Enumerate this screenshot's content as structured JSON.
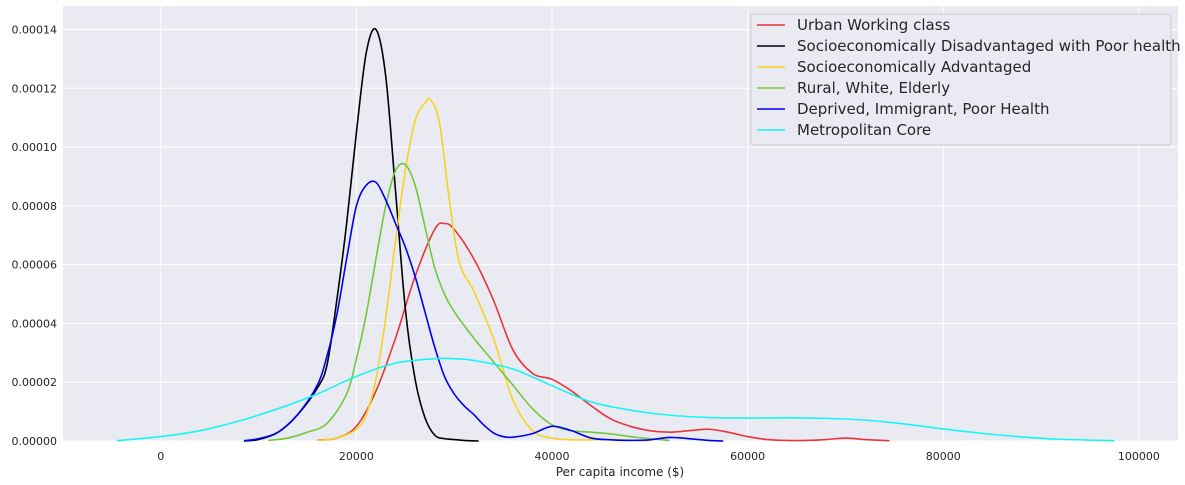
{
  "chart_data": {
    "type": "line",
    "title": "",
    "xlabel": "Per capita income ($)",
    "ylabel": "",
    "xlim": [
      -10000,
      104000
    ],
    "ylim": [
      0,
      0.000148
    ],
    "xticks": [
      0,
      20000,
      40000,
      60000,
      80000,
      100000
    ],
    "xtick_labels": [
      "0",
      "20000",
      "40000",
      "60000",
      "80000",
      "100000"
    ],
    "yticks": [
      0,
      2e-05,
      4e-05,
      6e-05,
      8e-05,
      0.0001,
      0.00012,
      0.00014
    ],
    "ytick_labels": [
      "0.00000",
      "0.00002",
      "0.00004",
      "0.00006",
      "0.00008",
      "0.00010",
      "0.00012",
      "0.00014"
    ],
    "grid": true,
    "legend_position": "top-right",
    "series": [
      {
        "name": "Urban Working class",
        "color": "#e8353a",
        "x": [
          16000,
          18000,
          20000,
          22000,
          24000,
          26000,
          28000,
          29000,
          30000,
          32000,
          34000,
          36000,
          38000,
          40000,
          42000,
          44000,
          46000,
          48000,
          50000,
          52000,
          54000,
          56000,
          58000,
          60000,
          62000,
          64000,
          66000,
          68000,
          70000,
          72000,
          74500
        ],
        "y": [
          3e-07,
          1e-06,
          5e-06,
          1.7e-05,
          3.5e-05,
          5.6e-05,
          7.2e-05,
          7.4e-05,
          7.2e-05,
          6.2e-05,
          4.8e-05,
          3.1e-05,
          2.3e-05,
          2.1e-05,
          1.7e-05,
          1.2e-05,
          7.5e-06,
          5e-06,
          3.5e-06,
          3e-06,
          3.5e-06,
          4e-06,
          3e-06,
          1.5e-06,
          5e-07,
          2e-07,
          2e-07,
          5e-07,
          1e-06,
          5e-07,
          1e-07
        ]
      },
      {
        "name": "Socioeconomically Disadvantaged with Poor health",
        "color": "#000000",
        "x": [
          8500,
          10000,
          12000,
          14000,
          16000,
          17000,
          18000,
          19000,
          20000,
          21000,
          22000,
          23000,
          24000,
          25000,
          26000,
          27000,
          28000,
          29000,
          30000,
          31000,
          32500
        ],
        "y": [
          0,
          5e-07,
          3e-06,
          9e-06,
          1.8e-05,
          2.6e-05,
          4.8e-05,
          7.4e-05,
          0.000105,
          0.000132,
          0.00014,
          0.000124,
          8.5e-05,
          4.5e-05,
          2.1e-05,
          8e-06,
          2e-06,
          8e-07,
          5e-07,
          2e-07,
          0
        ]
      },
      {
        "name": "Socioeconomically Advantaged",
        "color": "#f7d31e",
        "x": [
          16000,
          18000,
          20000,
          21000,
          22000,
          23000,
          24000,
          25000,
          26000,
          27000,
          27600,
          28500,
          29500,
          30500,
          32000,
          34000,
          36000,
          38000,
          40000,
          42000,
          44000,
          46000,
          48000,
          50000
        ],
        "y": [
          2e-07,
          1e-06,
          4e-06,
          9e-06,
          2.1e-05,
          4.2e-05,
          6.8e-05,
          9.2e-05,
          0.000109,
          0.000115,
          0.000116,
          0.000108,
          8.2e-05,
          6.1e-05,
          5.1e-05,
          3.5e-05,
          1.4e-05,
          3.5e-06,
          1e-06,
          4e-07,
          4e-07,
          5e-07,
          3e-07,
          1e-07
        ]
      },
      {
        "name": "Rural, White, Elderly",
        "color": "#73c73d",
        "x": [
          11000,
          13000,
          15000,
          17000,
          19000,
          20000,
          21000,
          22000,
          23000,
          24000,
          25000,
          26000,
          27000,
          28000,
          29000,
          30000,
          32000,
          34000,
          36000,
          38000,
          40000,
          42000,
          44000,
          46000,
          48000,
          50000,
          52000
        ],
        "y": [
          2e-07,
          1e-06,
          3e-06,
          6e-06,
          1.6e-05,
          2.8e-05,
          4.3e-05,
          6.2e-05,
          8e-05,
          9.2e-05,
          9.4e-05,
          8.7e-05,
          7.3e-05,
          5.9e-05,
          5e-05,
          4.4e-05,
          3.5e-05,
          2.7e-05,
          1.9e-05,
          1.1e-05,
          5.5e-06,
          3.5e-06,
          3e-06,
          2.4e-06,
          1.5e-06,
          8e-07,
          2e-07
        ]
      },
      {
        "name": "Deprived, Immigrant, Poor Health",
        "color": "#0000f5",
        "x": [
          8500,
          10000,
          12000,
          14000,
          16000,
          17000,
          18000,
          19000,
          20000,
          21000,
          22000,
          23000,
          24000,
          25000,
          26000,
          27000,
          28000,
          29000,
          30000,
          31000,
          32000,
          33000,
          34000,
          35000,
          36000,
          38000,
          40000,
          42000,
          44000,
          46000,
          48000,
          50000,
          52000,
          54000,
          56000,
          57500
        ],
        "y": [
          1e-07,
          8e-07,
          3e-06,
          9e-06,
          1.9e-05,
          2.9e-05,
          4.3e-05,
          6.2e-05,
          8e-05,
          8.7e-05,
          8.8e-05,
          8.2e-05,
          7.4e-05,
          6.6e-05,
          5.6e-05,
          4.4e-05,
          3.2e-05,
          2.2e-05,
          1.6e-05,
          1.2e-05,
          9e-06,
          5.5e-06,
          2.8e-06,
          1.5e-06,
          1.3e-06,
          2.5e-06,
          5e-06,
          3.5e-06,
          1e-06,
          4e-07,
          2e-07,
          4e-07,
          1.2e-06,
          8e-07,
          2e-07,
          0
        ]
      },
      {
        "name": "Metropolitan Core",
        "color": "#16f5f5",
        "x": [
          -4500,
          0,
          4000,
          8000,
          12000,
          16000,
          20000,
          24000,
          28000,
          30000,
          32000,
          36000,
          40000,
          44000,
          48000,
          52000,
          56000,
          60000,
          64000,
          68000,
          72000,
          76000,
          80000,
          84000,
          88000,
          92000,
          97500
        ],
        "y": [
          1e-07,
          1.5e-06,
          3.5e-06,
          6.8e-06,
          1.1e-05,
          1.6e-05,
          2.2e-05,
          2.65e-05,
          2.8e-05,
          2.8e-05,
          2.74e-05,
          2.45e-05,
          1.88e-05,
          1.33e-05,
          1.05e-05,
          8.8e-06,
          8e-06,
          7.8e-06,
          7.9e-06,
          7.7e-06,
          7.1e-06,
          5.8e-06,
          4.1e-06,
          2.6e-06,
          1.4e-06,
          6e-07,
          1e-07
        ]
      }
    ]
  }
}
